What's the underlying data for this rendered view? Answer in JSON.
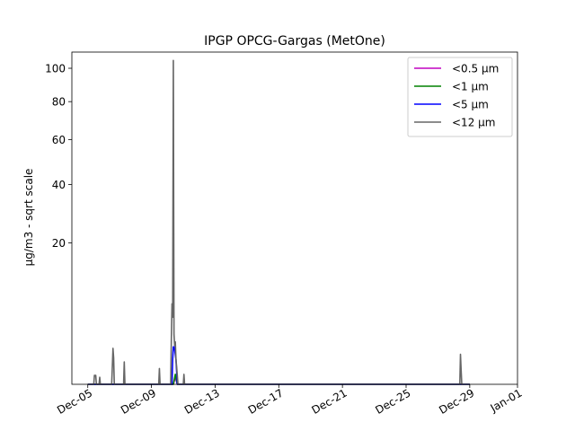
{
  "chart_data": {
    "type": "line",
    "title": "IPGP OPCG-Gargas (MetOne)",
    "ylabel": "µg/m3 - sqrt scale",
    "xlabel": "",
    "yscale": "sqrt",
    "ylim": [
      0,
      110.5
    ],
    "yticks": [
      20,
      40,
      60,
      80,
      100
    ],
    "xlim": [
      "2025-12-04",
      "2026-01-01"
    ],
    "xticks": [
      {
        "date": "2025-12-05",
        "label": "Dec-05"
      },
      {
        "date": "2025-12-09",
        "label": "Dec-09"
      },
      {
        "date": "2025-12-13",
        "label": "Dec-13"
      },
      {
        "date": "2025-12-17",
        "label": "Dec-17"
      },
      {
        "date": "2025-12-21",
        "label": "Dec-21"
      },
      {
        "date": "2025-12-25",
        "label": "Dec-25"
      },
      {
        "date": "2025-12-29",
        "label": "Dec-29"
      },
      {
        "date": "2026-01-01",
        "label": "Jan-01"
      }
    ],
    "grid": false,
    "legend_position": "top-right",
    "series": [
      {
        "name": "<0.5 µm",
        "color": "#c000c0",
        "points": [
          [
            "2025-12-05 00:00",
            0
          ],
          [
            "2025-12-10 09:00",
            0
          ],
          [
            "2025-12-10 12:00",
            0.05
          ],
          [
            "2025-12-10 15:00",
            0
          ],
          [
            "2025-12-29 00:00",
            0
          ]
        ]
      },
      {
        "name": "<1 µm",
        "color": "#008000",
        "points": [
          [
            "2025-12-05 00:00",
            0
          ],
          [
            "2025-12-10 09:00",
            0
          ],
          [
            "2025-12-10 12:00",
            0.1
          ],
          [
            "2025-12-10 15:00",
            0
          ],
          [
            "2025-12-29 00:00",
            0
          ]
        ]
      },
      {
        "name": "<5 µm",
        "color": "#0000ff",
        "points": [
          [
            "2025-12-05 00:00",
            0
          ],
          [
            "2025-12-10 07:00",
            0
          ],
          [
            "2025-12-10 08:00",
            0.6
          ],
          [
            "2025-12-10 09:00",
            1.4
          ],
          [
            "2025-12-10 10:00",
            1.4
          ],
          [
            "2025-12-10 11:00",
            1.2
          ],
          [
            "2025-12-10 13:00",
            0.6
          ],
          [
            "2025-12-10 15:00",
            0
          ],
          [
            "2025-12-29 00:00",
            0
          ]
        ]
      },
      {
        "name": "<12 µm",
        "color": "#666666",
        "points": [
          [
            "2025-12-05 00:00",
            0
          ],
          [
            "2025-12-05 09:00",
            0
          ],
          [
            "2025-12-05 10:00",
            0.08
          ],
          [
            "2025-12-05 12:00",
            0.08
          ],
          [
            "2025-12-05 13:00",
            0
          ],
          [
            "2025-12-05 17:00",
            0
          ],
          [
            "2025-12-05 18:00",
            0.05
          ],
          [
            "2025-12-05 19:00",
            0
          ],
          [
            "2025-12-06 12:00",
            0
          ],
          [
            "2025-12-06 13:00",
            0.3
          ],
          [
            "2025-12-06 14:00",
            1.3
          ],
          [
            "2025-12-06 15:00",
            0.7
          ],
          [
            "2025-12-06 16:00",
            0
          ],
          [
            "2025-12-07 06:00",
            0
          ],
          [
            "2025-12-07 07:00",
            0.5
          ],
          [
            "2025-12-07 08:00",
            0
          ],
          [
            "2025-12-09 11:00",
            0
          ],
          [
            "2025-12-09 12:00",
            0.25
          ],
          [
            "2025-12-09 13:00",
            0
          ],
          [
            "2025-12-10 05:00",
            0
          ],
          [
            "2025-12-10 06:00",
            2
          ],
          [
            "2025-12-10 07:00",
            6.5
          ],
          [
            "2025-12-10 08:00",
            4.5
          ],
          [
            "2025-12-10 09:00",
            105
          ],
          [
            "2025-12-10 10:00",
            2.5
          ],
          [
            "2025-12-10 11:00",
            1.5
          ],
          [
            "2025-12-10 12:00",
            1.8
          ],
          [
            "2025-12-10 13:00",
            0.6
          ],
          [
            "2025-12-10 14:00",
            0.3
          ],
          [
            "2025-12-10 16:00",
            0
          ],
          [
            "2025-12-11 00:00",
            0
          ],
          [
            "2025-12-11 01:00",
            0.1
          ],
          [
            "2025-12-11 02:00",
            0
          ],
          [
            "2025-12-28 09:00",
            0
          ],
          [
            "2025-12-28 10:00",
            0.9
          ],
          [
            "2025-12-28 11:00",
            0.2
          ],
          [
            "2025-12-28 12:00",
            0
          ],
          [
            "2025-12-29 00:00",
            0
          ]
        ]
      }
    ]
  }
}
